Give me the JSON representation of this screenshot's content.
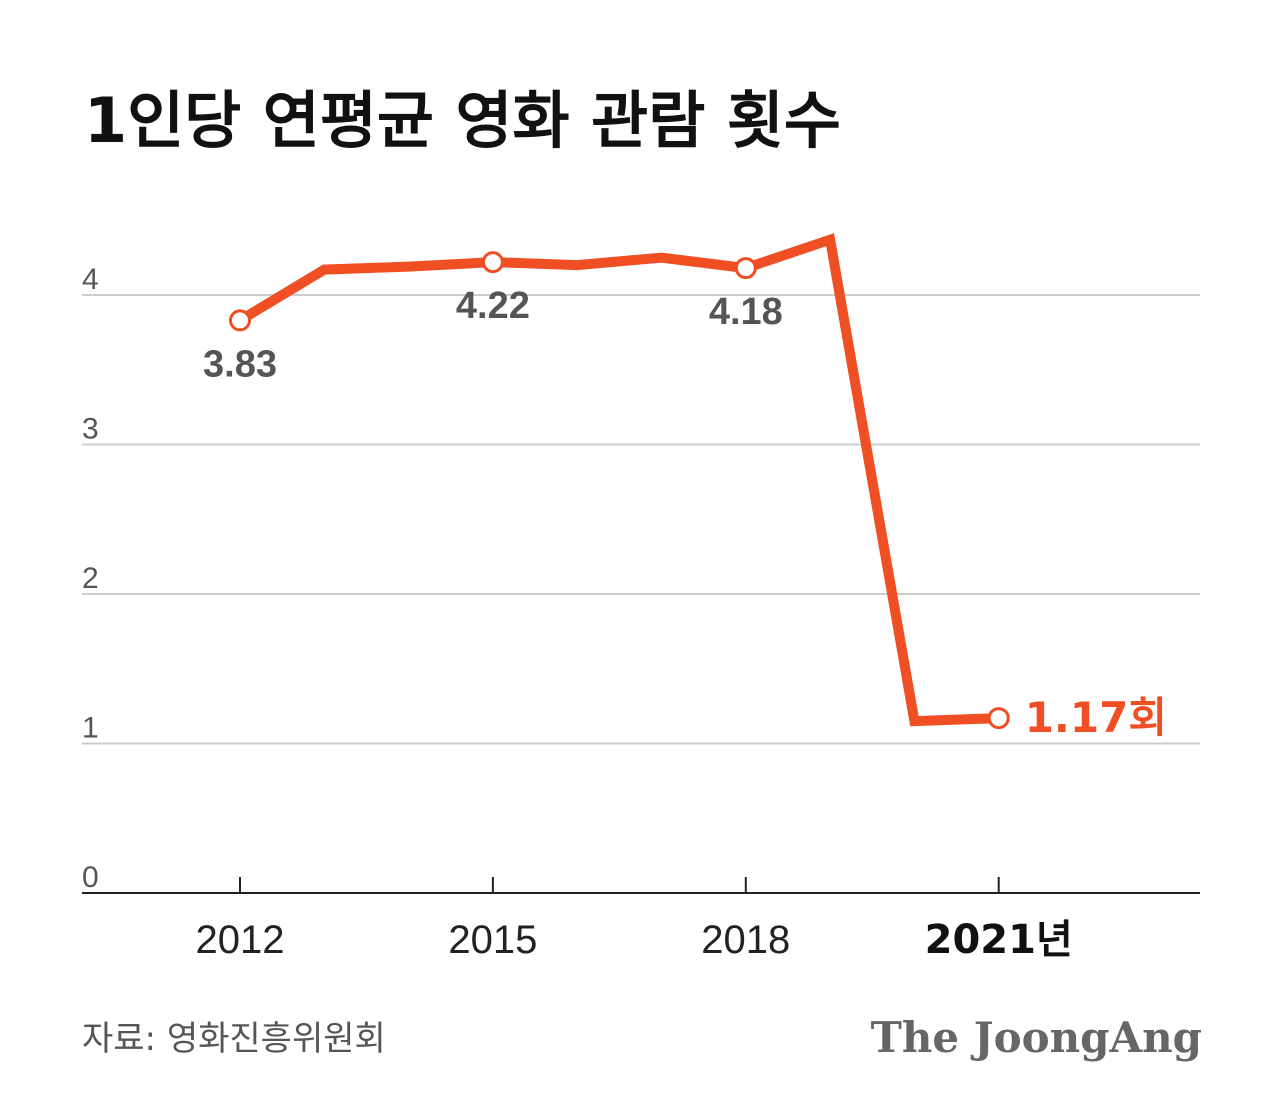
{
  "title": "1인당 연평균 영화 관람 횟수",
  "source": "자료: 영화진흥위원회",
  "brand": "The JoongAng",
  "colors": {
    "line": "#F04E23",
    "grid": "#cccccc",
    "axis": "#222222",
    "label": "#555555"
  },
  "chart_data": {
    "type": "line",
    "title": "1인당 연평균 영화 관람 횟수",
    "xlabel": "",
    "ylabel": "",
    "x": [
      2012,
      2013,
      2014,
      2015,
      2016,
      2017,
      2018,
      2019,
      2020,
      2021
    ],
    "series": [
      {
        "name": "1인당 연평균 영화 관람 횟수",
        "values": [
          3.83,
          4.17,
          4.19,
          4.22,
          4.2,
          4.25,
          4.18,
          4.37,
          1.15,
          1.17
        ]
      }
    ],
    "ylim": [
      0,
      4.4
    ],
    "yticks": [
      0,
      1,
      2,
      3,
      4
    ],
    "ytick_labels": [
      "0",
      "1",
      "2",
      "3",
      "4"
    ],
    "xticks": [
      2012,
      2015,
      2018,
      2021
    ],
    "xtick_labels": [
      "2012",
      "2015",
      "2018",
      "2021년"
    ],
    "grid": true,
    "markers": [
      2012,
      2015,
      2018,
      2021
    ],
    "annotations": [
      {
        "x": 2012,
        "text": "3.83",
        "position": "below",
        "highlight": false
      },
      {
        "x": 2015,
        "text": "4.22",
        "position": "below",
        "highlight": false
      },
      {
        "x": 2018,
        "text": "4.18",
        "position": "below",
        "highlight": false
      },
      {
        "x": 2021,
        "text": "1.17회",
        "position": "right",
        "highlight": true
      }
    ]
  }
}
